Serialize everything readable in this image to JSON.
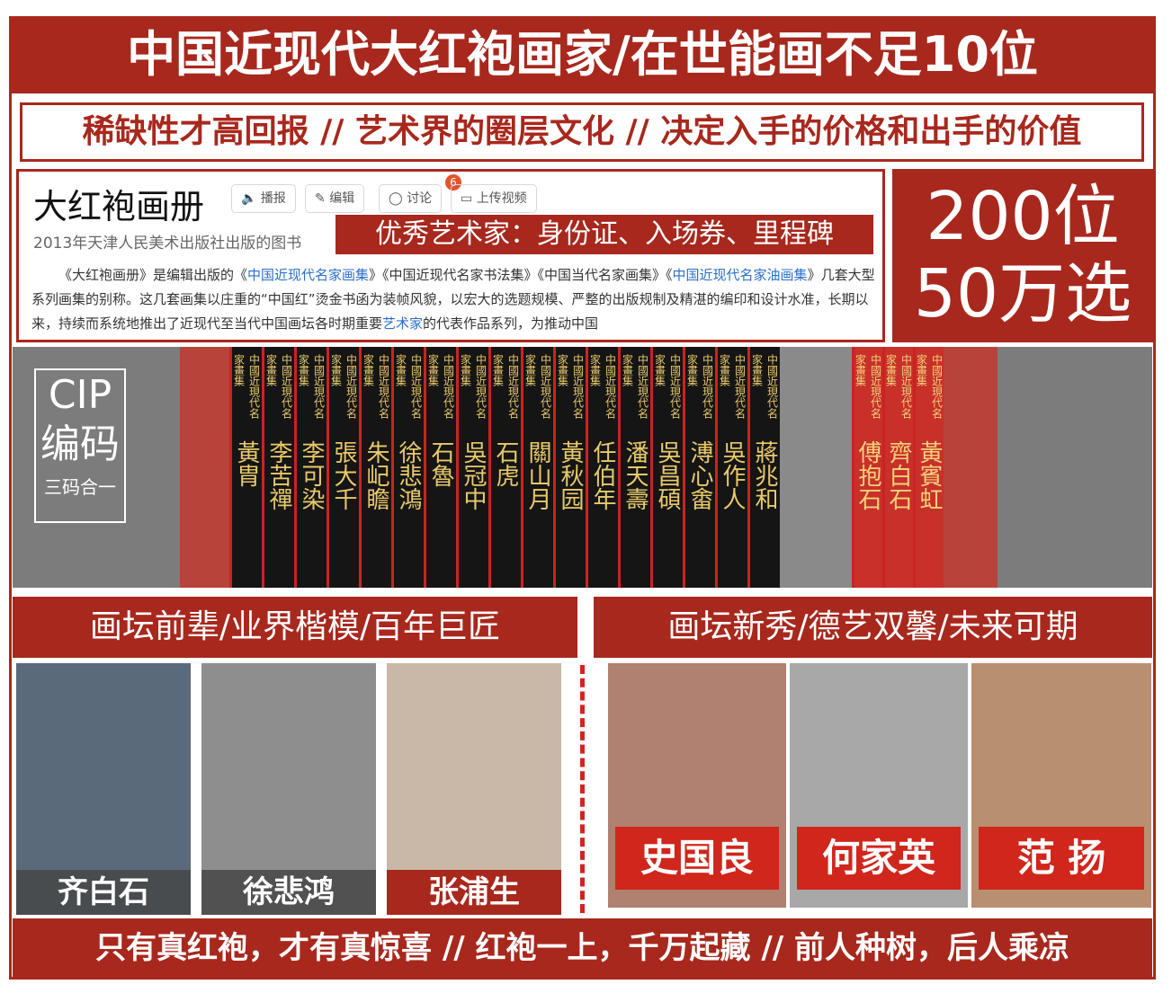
{
  "title": "中国近现代大红袍画家/在世能画不足10位",
  "subtitle": "稀缺性才高回报 // 艺术界的圈层文化 // 决定入手的价格和出手的价值",
  "doc": {
    "heading": "大红袍画册",
    "buttons": [
      "播报",
      "编辑",
      "讨论",
      "上传视频"
    ],
    "badge": "6",
    "publisher": "2013年天津人民美术出版社出版的图书",
    "highlight": "优秀艺术家：身份证、入场券、里程碑",
    "body": [
      "《大红袍画册》是编辑出版的《",
      "中国近现代名家画集",
      "》《中国近现代名家书法集》《中国当代名家画集》《",
      "中国近现代名家油画集",
      "》几套大型系列画集的别称。这几套画集以庄重的“中国红”烫金书函为装帧风貌，以宏大的选题规模、严整的出版规制及精湛的编印和设计水准，长期以来，持续而系统地推出了近现代至当代中国画坛各时期重要",
      "艺术家",
      "的代表作品系列，为推动中国"
    ]
  },
  "stat": {
    "line1": "200位",
    "line2": "50万选"
  },
  "cip": {
    "line1": "CIP",
    "line2": "编码",
    "line3": "三码合一"
  },
  "series_label": "中國近現代名家畫集",
  "spines_black": [
    "黃胄",
    "李苦禪",
    "李可染",
    "張大千",
    "朱屺瞻",
    "徐悲鴻",
    "石魯",
    "吳冠中",
    "石虎",
    "關山月",
    "黃秋园",
    "任伯年",
    "潘天壽",
    "吳昌碩",
    "溥心畬",
    "吳作人",
    "蔣兆和"
  ],
  "spines_red": [
    "傅抱石",
    "齊白石",
    "黃賓虹"
  ],
  "sections": {
    "left": "画坛前辈/业界楷模/百年巨匠",
    "right": "画坛新秀/德艺双馨/未来可期"
  },
  "masters": [
    "齐白石",
    "徐悲鸿",
    "张浦生"
  ],
  "newcomers": [
    "史国良",
    "何家英",
    "范 扬"
  ],
  "footer": "只有真红袍，才有真惊喜 // 红袍一上，千万起藏 // 前人种树，后人乘凉",
  "colors": {
    "brand_red": "#a8281d",
    "link": "#2a6fc9",
    "gold": "#e8c96b"
  }
}
